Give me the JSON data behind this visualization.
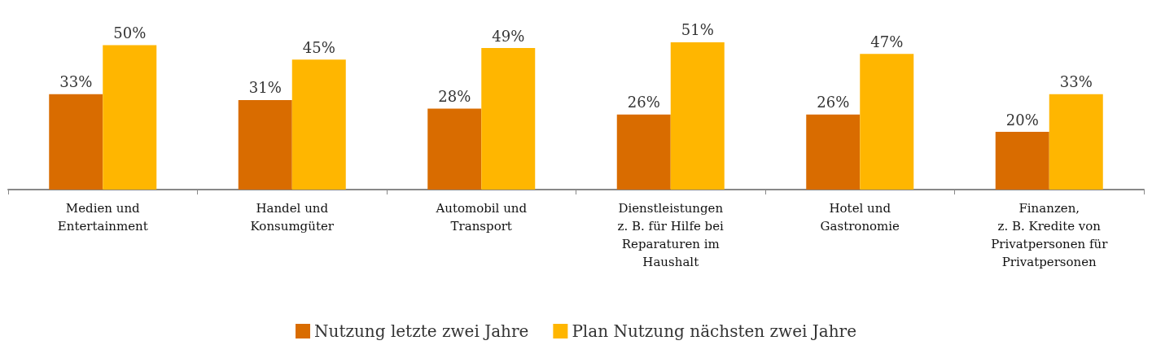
{
  "chart_data": {
    "type": "bar",
    "categories": [
      "Medien und\nEntertainment",
      "Handel und\nKonsumgüter",
      "Automobil und\nTransport",
      "Dienstleistungen\nz. B. für Hilfe bei\nReparaturen im\nHaushalt",
      "Hotel und\nGastronomie",
      "Finanzen,\nz. B. Kredite von\nPrivatpersonen für\nPrivatpersonen"
    ],
    "series": [
      {
        "name": "Nutzung letzte zwei Jahre",
        "color": "#d96c00",
        "values": [
          33,
          31,
          28,
          26,
          26,
          20
        ],
        "value_labels": [
          "33%",
          "31%",
          "28%",
          "26%",
          "26%",
          "20%"
        ]
      },
      {
        "name": "Plan Nutzung nächsten zwei Jahre",
        "color": "#ffb600",
        "values": [
          50,
          45,
          49,
          51,
          47,
          33
        ],
        "value_labels": [
          "50%",
          "45%",
          "49%",
          "51%",
          "47%",
          "33%"
        ]
      }
    ],
    "legend": "bottom"
  }
}
